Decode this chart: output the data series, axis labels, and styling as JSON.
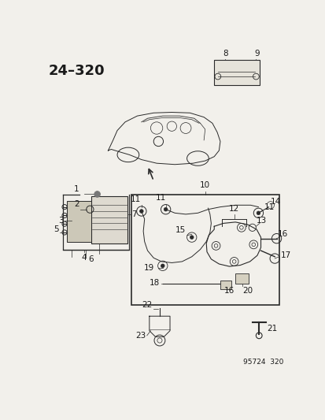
{
  "title": "24–320",
  "footer": "95724  320",
  "bg_color": "#f2f0eb",
  "line_color": "#2a2a2a",
  "text_color": "#1a1a1a",
  "title_fontsize": 13,
  "label_fontsize": 7.5,
  "footer_fontsize": 6.5
}
